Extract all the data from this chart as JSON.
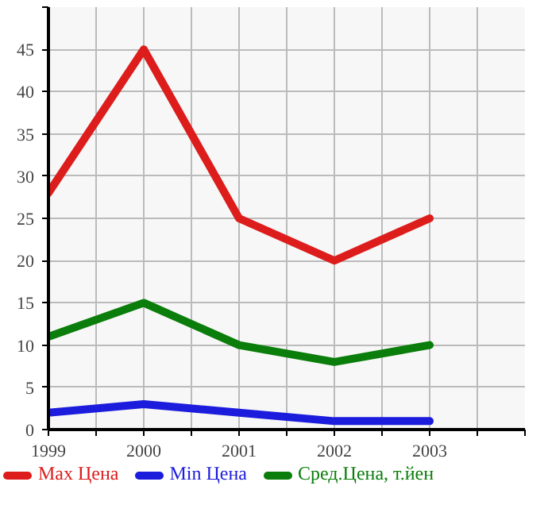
{
  "chart_data": {
    "type": "line",
    "x": [
      1999,
      2000,
      2001,
      2002,
      2003
    ],
    "series": [
      {
        "name": "Max Цена",
        "color": "#dd1c1c",
        "values": [
          28,
          45,
          25,
          20,
          25
        ]
      },
      {
        "name": "Min Цена",
        "color": "#1c1cdd",
        "values": [
          2,
          3,
          2,
          1,
          1
        ]
      },
      {
        "name": "Сред.Цена, т.йен",
        "color": "#0a7d0a",
        "values": [
          11,
          15,
          10,
          8,
          10
        ]
      }
    ],
    "xlim": [
      1999,
      2004
    ],
    "xticks": [
      1999,
      {
        "value": 1999.5,
        "label": null
      },
      2000,
      {
        "value": 2000.5,
        "label": null
      },
      2001,
      {
        "value": 2001.5,
        "label": null
      },
      2002,
      {
        "value": 2002.5,
        "label": null
      },
      2003,
      {
        "value": 2003.5,
        "label": null
      },
      {
        "value": 2004,
        "label": null
      }
    ],
    "ylim": [
      0,
      50
    ],
    "yticks": [
      0,
      5,
      10,
      15,
      20,
      25,
      30,
      35,
      40,
      45,
      {
        "value": 50,
        "label": null
      }
    ],
    "grid": true,
    "legend": "bottom",
    "marker": "none",
    "line_style": "solid"
  }
}
